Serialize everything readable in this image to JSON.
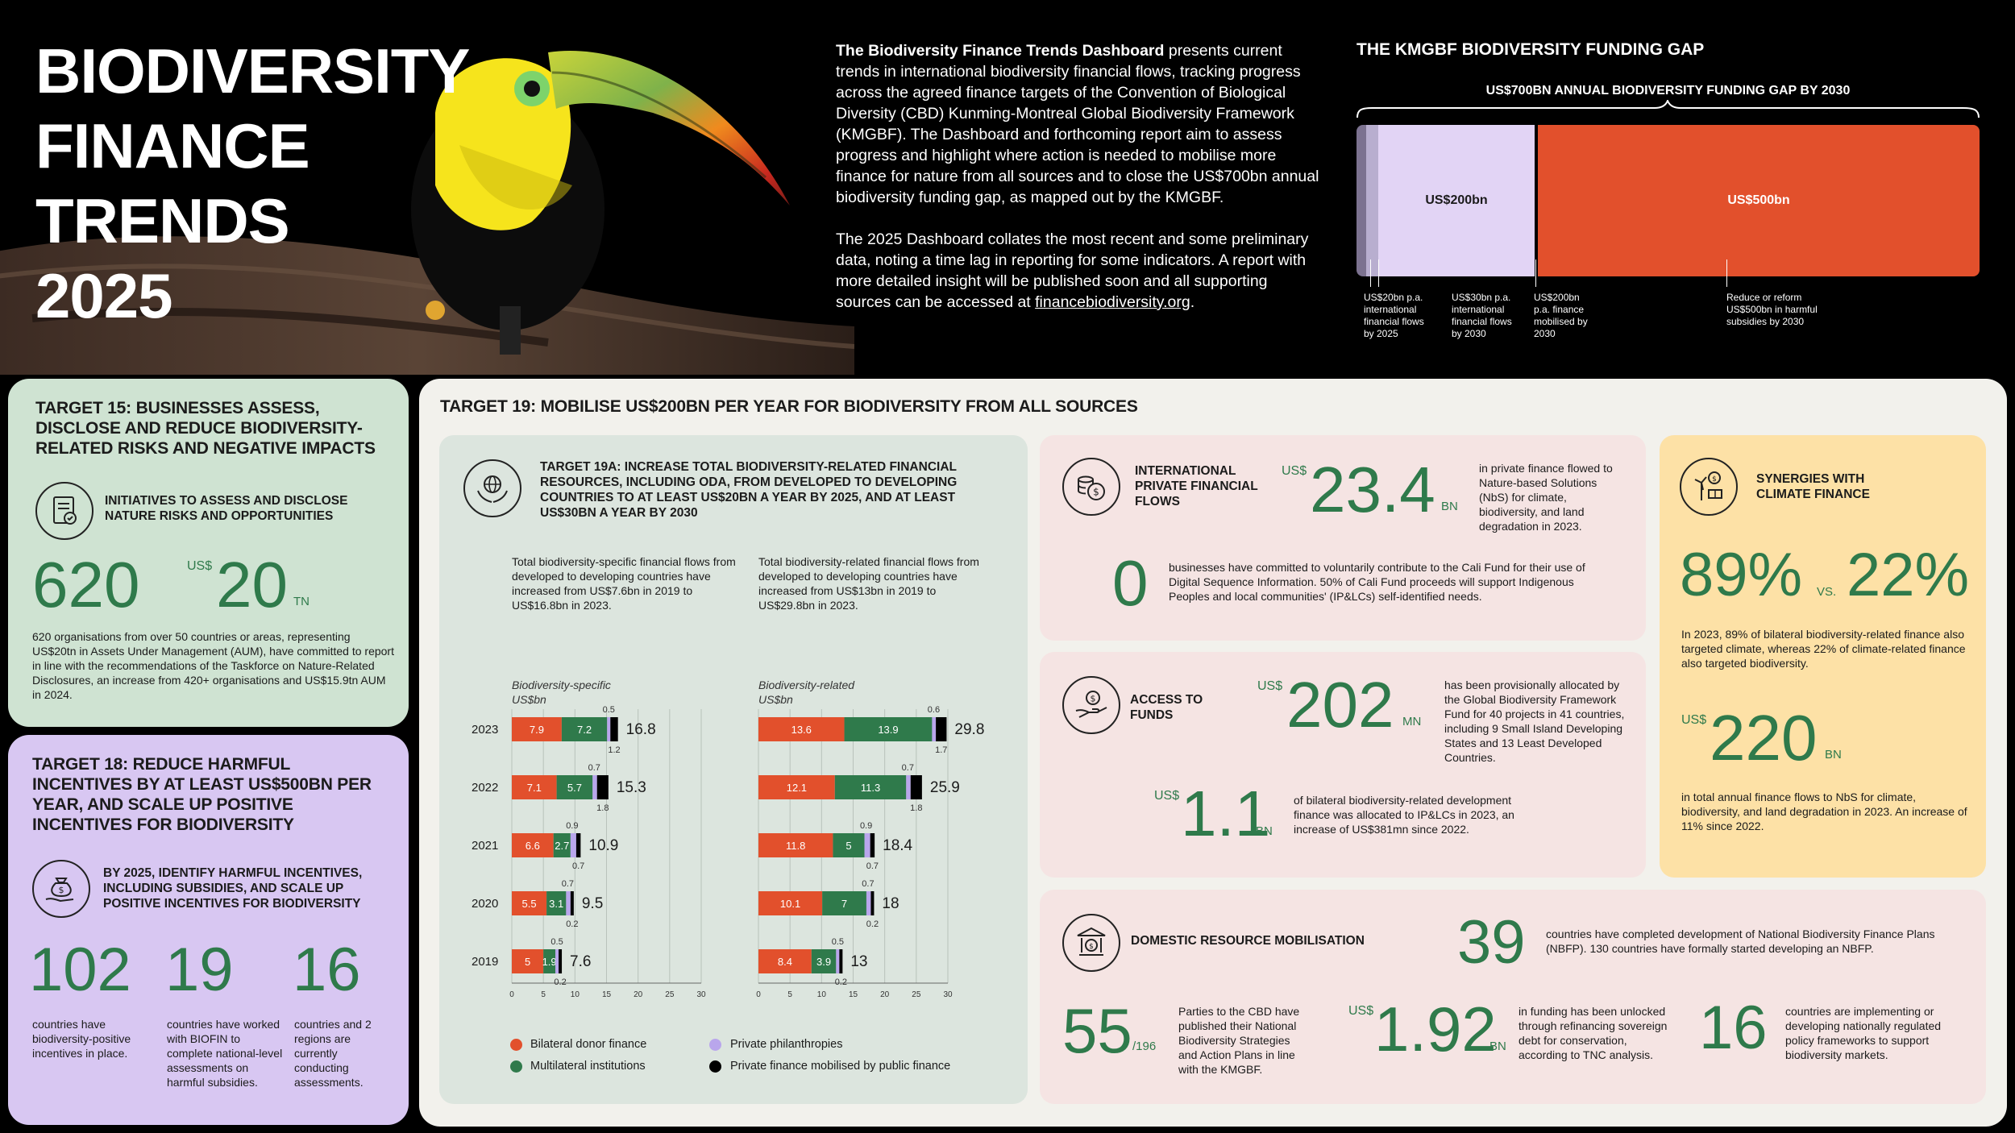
{
  "hero": {
    "title_lines": [
      "BIODIVERSITY",
      "FINANCE",
      "TRENDS",
      "2025"
    ],
    "intro_bold": "The Biodiversity Finance Trends Dashboard",
    "intro_p1_rest": " presents current trends in international biodiversity financial flows, tracking progress across the agreed finance targets of the Convention of Biological Diversity (CBD) Kunming-Montreal Global Biodiversity Framework (KMGBF). The Dashboard and forthcoming report aim to assess progress and highlight where action is needed to mobilise more finance for nature from all sources and to close the US$700bn annual biodiversity funding gap, as mapped out by the KMGBF.",
    "intro_p2_pre": "The 2025 Dashboard collates the most recent and some preliminary data, noting a time lag in reporting for some indicators. A report with more detailed insight will be published soon and all supporting sources can be accessed at ",
    "intro_link": "financebiodiversity.org",
    "intro_p2_post": "."
  },
  "gap": {
    "title": "THE KMGBF BIODIVERSITY FUNDING GAP",
    "subtitle": "US$700BN ANNUAL BIODIVERSITY FUNDING GAP BY 2030",
    "seg_200_label": "US$200bn",
    "seg_500_label": "US$500bn",
    "notes": [
      "US$20bn p.a.\ninternational\nfinancial flows\nby 2025",
      "US$30bn p.a.\ninternational\nfinancial flows\nby 2030",
      "US$200bn\np.a. finance\nmobilised by\n2030",
      "Reduce or reform\nUS$500bn in harmful\nsubsidies by 2030"
    ],
    "colors": {
      "seg20": "#7c7290",
      "seg30": "#b8aecf",
      "seg200": "#e2d4f5",
      "seg500": "#e2502c"
    }
  },
  "t15": {
    "heading_bold": "TARGET 15:",
    "heading_rest": " BUSINESSES ASSESS, DISCLOSE AND REDUCE BIODIVERSITY-RELATED RISKS AND NEGATIVE IMPACTS",
    "sub": "INITIATIVES TO ASSESS AND DISCLOSE NATURE RISKS AND OPPORTUNITIES",
    "num1": "620",
    "prefix2": "US$",
    "num2": "20",
    "unit2": "TN",
    "body": "620 organisations from over 50 countries or areas, representing US$20tn in Assets Under Management (AUM), have committed to report in line with the recommendations of the Taskforce on Nature-Related Disclosures, an increase from 420+ organisations and US$15.9tn AUM in 2024.",
    "icon": "document-checklist-icon"
  },
  "t18": {
    "heading_bold": "TARGET 18:",
    "heading_rest": " REDUCE HARMFUL INCENTIVES BY AT LEAST US$500BN PER YEAR, AND SCALE UP POSITIVE INCENTIVES FOR BIODIVERSITY",
    "sub": "BY 2025, IDENTIFY HARMFUL INCENTIVES, INCLUDING SUBSIDIES, AND SCALE UP POSITIVE INCENTIVES FOR BIODIVERSITY",
    "stats": [
      {
        "num": "102",
        "text": "countries have biodiversity-positive incentives in place."
      },
      {
        "num": "19",
        "text": "countries have worked with BIOFIN to complete national-level assessments on harmful subsidies."
      },
      {
        "num": "16",
        "text": "countries and 2 regions are currently conducting assessments."
      }
    ],
    "icon": "money-bag-hand-icon"
  },
  "t19": {
    "heading_bold": "TARGET 19:",
    "heading_rest": " MOBILISE US$200BN PER YEAR FOR BIODIVERSITY FROM ALL SOURCES"
  },
  "t19a": {
    "heading": "TARGET 19A: INCREASE TOTAL BIODIVERSITY-RELATED FINANCIAL RESOURCES, INCLUDING ODA, FROM DEVELOPED TO DEVELOPING COUNTRIES TO AT LEAST US$20BN A YEAR BY 2025, AND AT LEAST US$30BN A YEAR BY 2030",
    "desc_left": "Total biodiversity-specific financial flows from developed to developing countries have increased from US$7.6bn in 2019 to US$16.8bn in 2023.",
    "desc_right": "Total biodiversity-related financial flows from developed to developing countries have increased from US$13bn in 2019 to US$29.8bn in 2023.",
    "icon": "globe-hands-icon"
  },
  "chart_data": [
    {
      "type": "bar",
      "orientation": "horizontal-stacked",
      "title": "Biodiversity-specific",
      "unit": "US$bn",
      "categories": [
        "2023",
        "2022",
        "2021",
        "2020",
        "2019"
      ],
      "series": [
        {
          "name": "Bilateral donor finance",
          "values": [
            7.9,
            7.1,
            6.6,
            5.5,
            5.0
          ]
        },
        {
          "name": "Multilateral institutions",
          "values": [
            7.2,
            5.7,
            2.7,
            3.1,
            1.9
          ]
        },
        {
          "name": "Private philanthropies",
          "values": [
            0.5,
            0.7,
            0.9,
            0.7,
            0.5
          ]
        },
        {
          "name": "Private finance mobilised by public finance",
          "values": [
            1.2,
            1.8,
            0.7,
            0.2,
            0.2
          ]
        }
      ],
      "totals": [
        16.8,
        15.3,
        10.9,
        9.5,
        7.6
      ],
      "xlim": [
        0,
        30
      ],
      "xticks": [
        0,
        5,
        10,
        15,
        20,
        25,
        30
      ]
    },
    {
      "type": "bar",
      "orientation": "horizontal-stacked",
      "title": "Biodiversity-related",
      "unit": "US$bn",
      "categories": [
        "2023",
        "2022",
        "2021",
        "2020",
        "2019"
      ],
      "series": [
        {
          "name": "Bilateral donor finance",
          "values": [
            13.6,
            12.1,
            11.8,
            10.1,
            8.4
          ]
        },
        {
          "name": "Multilateral institutions",
          "values": [
            13.9,
            11.3,
            5.0,
            7.0,
            3.9
          ]
        },
        {
          "name": "Private philanthropies",
          "values": [
            0.6,
            0.7,
            0.9,
            0.7,
            0.5
          ]
        },
        {
          "name": "Private finance mobilised by public finance",
          "values": [
            1.7,
            1.8,
            0.7,
            0.2,
            0.2
          ]
        }
      ],
      "totals": [
        29.8,
        25.9,
        18.4,
        18.0,
        13.0
      ],
      "xlim": [
        0,
        30
      ],
      "xticks": [
        0,
        5,
        10,
        15,
        20,
        25,
        30
      ]
    }
  ],
  "legend": {
    "items": [
      "Bilateral donor finance",
      "Multilateral institutions",
      "Private philanthropies",
      "Private finance mobilised by public finance"
    ],
    "colors": [
      "#e2502c",
      "#2f7a4b",
      "#b9a6ec",
      "#000000"
    ]
  },
  "intl": {
    "label": "INTERNATIONAL PRIVATE FINANCIAL FLOWS",
    "prefix": "US$",
    "num": "23.4",
    "unit": "BN",
    "text": "in private finance flowed to Nature-based Solutions (NbS) for climate, biodiversity, and land degradation in 2023.",
    "num2": "0",
    "text2": "businesses have committed to voluntarily contribute to the Cali Fund for their use of Digital Sequence Information. 50% of Cali Fund proceeds will support Indigenous Peoples and local communities' (IP&LCs) self-identified needs.",
    "icon": "coins-dollar-icon"
  },
  "access": {
    "label": "ACCESS TO FUNDS",
    "prefix": "US$",
    "num": "202",
    "unit": "MN",
    "text": "has been provisionally allocated by the Global Biodiversity Framework Fund for 40 projects in 41 countries, including 9 Small Island Developing States and 13 Least Developed Countries.",
    "prefix2": "US$",
    "num2": "1.1",
    "unit2": "BN",
    "text2": "of bilateral biodiversity-related development finance was allocated to IP&LCs in 2023, an increase of US$381mn since 2022.",
    "icon": "hand-dollar-icon"
  },
  "syn": {
    "label": "SYNERGIES WITH CLIMATE FINANCE",
    "num1": "89%",
    "vs": "VS.",
    "num2": "22%",
    "text1": "In 2023, 89% of bilateral biodiversity-related finance also targeted climate, whereas 22% of climate-related finance also targeted biodiversity.",
    "prefix3": "US$",
    "num3": "220",
    "unit3": "BN",
    "text3": "in total annual finance flows to NbS for climate, biodiversity, and land degradation in 2023. An increase of 11% since 2022.",
    "icon": "wind-solar-dollar-icon"
  },
  "dom": {
    "label": "DOMESTIC RESOURCE MOBILISATION",
    "num1": "39",
    "text1": "countries have completed development of National Biodiversity Finance Plans (NBFP). 130 countries have formally started developing an NBFP.",
    "num2": "55",
    "num2_suffix": "/196",
    "text2": "Parties to the CBD have published their National Biodiversity Strategies and Action Plans in line with the KMGBF.",
    "prefix3": "US$",
    "num3": "1.92",
    "unit3": "BN",
    "text3": "in funding has been unlocked through refinancing sovereign debt for conservation, according to TNC analysis.",
    "num4": "16",
    "text4": "countries are implementing or developing nationally regulated policy frameworks to support biodiversity markets.",
    "icon": "bank-dollar-icon"
  }
}
